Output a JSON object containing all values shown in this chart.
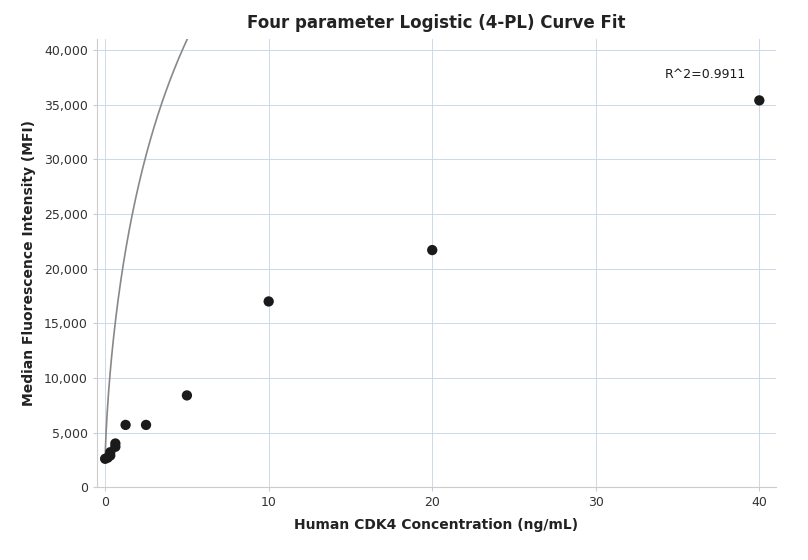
{
  "title": "Four parameter Logistic (4-PL) Curve Fit",
  "xlabel": "Human CDK4 Concentration (ng/mL)",
  "ylabel": "Median Fluorescence Intensity (MFI)",
  "scatter_x": [
    0.0,
    0.156,
    0.313,
    0.313,
    0.625,
    0.625,
    1.25,
    2.5,
    5.0,
    10.0,
    20.0,
    40.0
  ],
  "scatter_y": [
    2600,
    2700,
    2900,
    3200,
    3700,
    4000,
    5700,
    5700,
    8400,
    17000,
    21700,
    35400
  ],
  "r_squared": "R^2=0.9911",
  "xlim": [
    -0.5,
    41
  ],
  "ylim": [
    0,
    41000
  ],
  "yticks": [
    0,
    5000,
    10000,
    15000,
    20000,
    25000,
    30000,
    35000,
    40000
  ],
  "xticks": [
    0,
    10,
    20,
    30,
    40
  ],
  "background_color": "#ffffff",
  "grid_color": "#ccd9ec",
  "scatter_color": "#1a1a1a",
  "curve_color": "#888888",
  "scatter_size": 55,
  "title_fontsize": 12,
  "label_fontsize": 10,
  "annotation_fontsize": 9,
  "r2_x": 39.2,
  "r2_y": 37200,
  "4pl_A": 2400,
  "4pl_B": 0.72,
  "4pl_C": 8.0,
  "4pl_D": 95000
}
